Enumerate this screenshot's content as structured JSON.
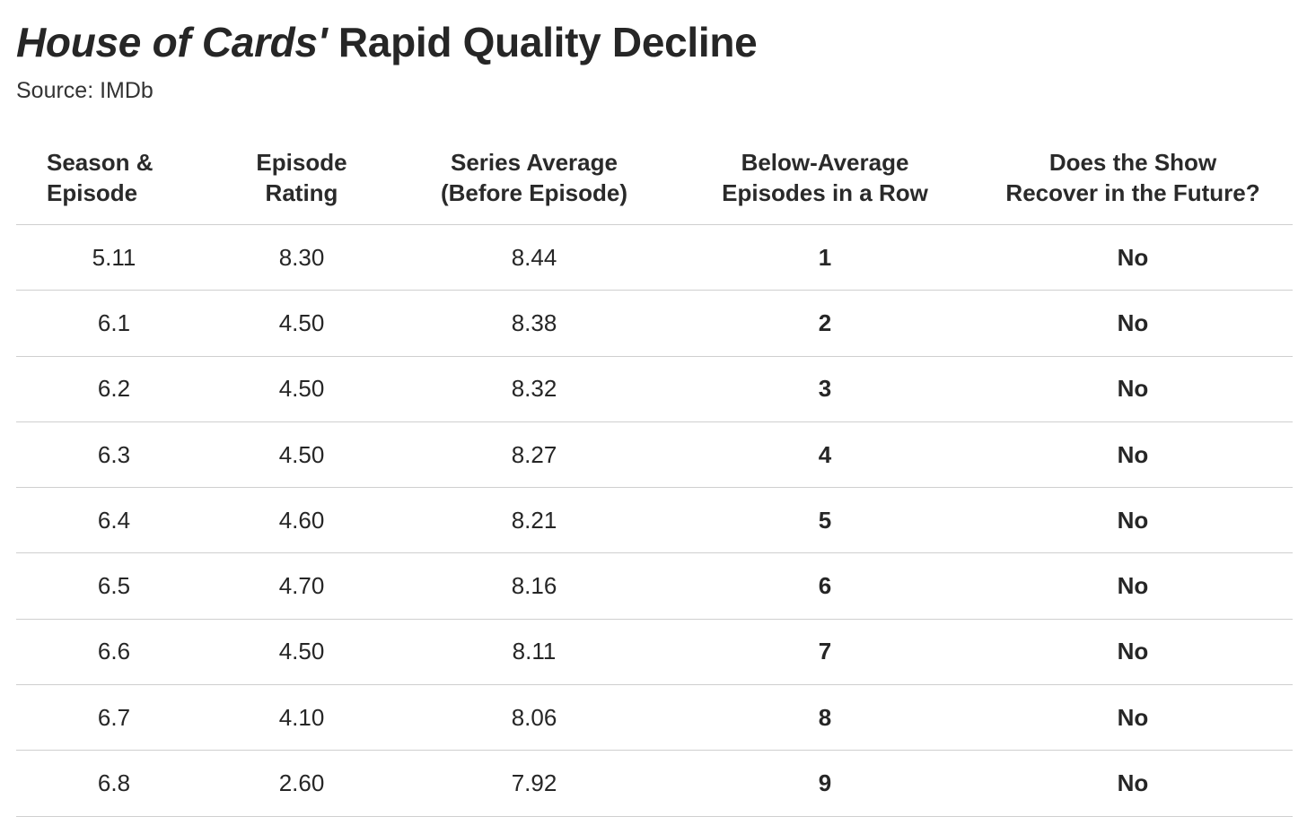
{
  "title_italic": "House of Cards'",
  "title_rest": " Rapid Quality Decline",
  "source": "Source: IMDb",
  "chart_data": {
    "type": "table",
    "columns": [
      [
        "Season &",
        "Episode"
      ],
      [
        "Episode",
        "Rating"
      ],
      [
        "Series Average",
        "(Before Episode)"
      ],
      [
        "Below-Average",
        "Episodes in a Row"
      ],
      [
        "Does the Show",
        "Recover in the Future?"
      ]
    ],
    "rows": [
      [
        "5.11",
        "8.30",
        "8.44",
        "1",
        "No"
      ],
      [
        "6.1",
        "4.50",
        "8.38",
        "2",
        "No"
      ],
      [
        "6.2",
        "4.50",
        "8.32",
        "3",
        "No"
      ],
      [
        "6.3",
        "4.50",
        "8.27",
        "4",
        "No"
      ],
      [
        "6.4",
        "4.60",
        "8.21",
        "5",
        "No"
      ],
      [
        "6.5",
        "4.70",
        "8.16",
        "6",
        "No"
      ],
      [
        "6.6",
        "4.50",
        "8.11",
        "7",
        "No"
      ],
      [
        "6.7",
        "4.10",
        "8.06",
        "8",
        "No"
      ],
      [
        "6.8",
        "2.60",
        "7.92",
        "9",
        "No"
      ]
    ]
  }
}
